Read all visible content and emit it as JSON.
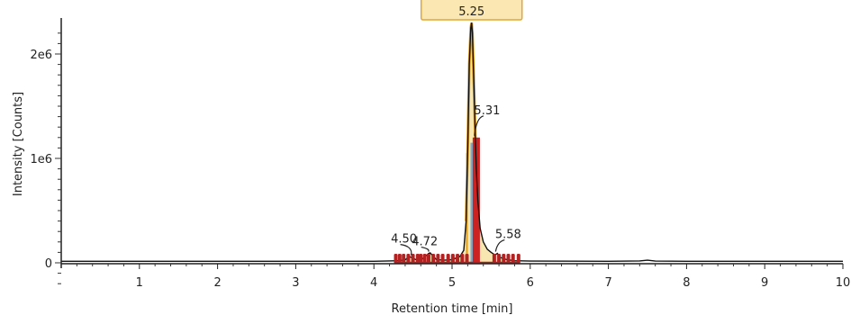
{
  "chart_data": {
    "type": "line",
    "xlabel": "Retention time [min]",
    "ylabel": "Intensity [Counts]",
    "xlim": [
      0,
      10
    ],
    "ylim": [
      -50000,
      2350000
    ],
    "x_ticks": [
      "1",
      "2",
      "3",
      "4",
      "5",
      "6",
      "7",
      "8",
      "9",
      "10"
    ],
    "y_ticks": [
      {
        "value": 0,
        "label": "0"
      },
      {
        "value": 1000000,
        "label": "1e6"
      },
      {
        "value": 2000000,
        "label": "2e6"
      }
    ],
    "grid": false,
    "series": [
      {
        "role": "chromatogram",
        "color": "#111111",
        "x": [
          0.0,
          4.0,
          4.2,
          4.3,
          4.4,
          4.45,
          4.5,
          4.55,
          4.6,
          4.65,
          4.7,
          4.72,
          4.75,
          4.8,
          4.9,
          5.0,
          5.1,
          5.15,
          5.18,
          5.2,
          5.22,
          5.24,
          5.25,
          5.26,
          5.28,
          5.3,
          5.31,
          5.33,
          5.36,
          5.4,
          5.45,
          5.5,
          5.55,
          5.58,
          5.62,
          5.7,
          5.8,
          6.0,
          7.0,
          7.4,
          7.5,
          7.6,
          8.0,
          9.0,
          10.0
        ],
        "y": [
          15000,
          15000,
          18000,
          20000,
          28000,
          60000,
          45000,
          25000,
          28000,
          55000,
          90000,
          95000,
          70000,
          30000,
          25000,
          30000,
          60000,
          120000,
          400000,
          1100000,
          1900000,
          2250000,
          2300000,
          2200000,
          1700000,
          1150000,
          900000,
          600000,
          330000,
          200000,
          130000,
          100000,
          75000,
          90000,
          50000,
          30000,
          20000,
          16000,
          15000,
          18000,
          25000,
          16000,
          15000,
          15000,
          15000
        ]
      },
      {
        "role": "peak-fill",
        "peak": "5.25",
        "color": "#f8e7b0",
        "edge_color": "#e0a020",
        "x_range": [
          4.28,
          5.85
        ]
      },
      {
        "role": "highlighted-bar",
        "peak": "5.31",
        "color": "#cc2222",
        "x": 5.31,
        "y": 1200000
      },
      {
        "role": "reference-bar",
        "color": "#7ea8c8",
        "x": 5.27,
        "y": 1150000
      }
    ],
    "peak_labels": [
      {
        "label": "4.50",
        "x": 4.5,
        "y": 55000
      },
      {
        "label": "4.72",
        "x": 4.72,
        "y": 90000
      },
      {
        "label": "5.31",
        "x": 5.31,
        "y": 1200000
      },
      {
        "label": "5.58",
        "x": 5.58,
        "y": 90000
      }
    ],
    "selected_peak": {
      "label": "5.25",
      "x": 5.25
    },
    "marker_row": {
      "color": "#b22222",
      "x": [
        4.28,
        4.33,
        4.38,
        4.44,
        4.5,
        4.56,
        4.6,
        4.65,
        4.7,
        4.76,
        4.82,
        4.88,
        4.95,
        5.01,
        5.07,
        5.13,
        5.19,
        5.54,
        5.6,
        5.66,
        5.72,
        5.78,
        5.85
      ]
    }
  }
}
